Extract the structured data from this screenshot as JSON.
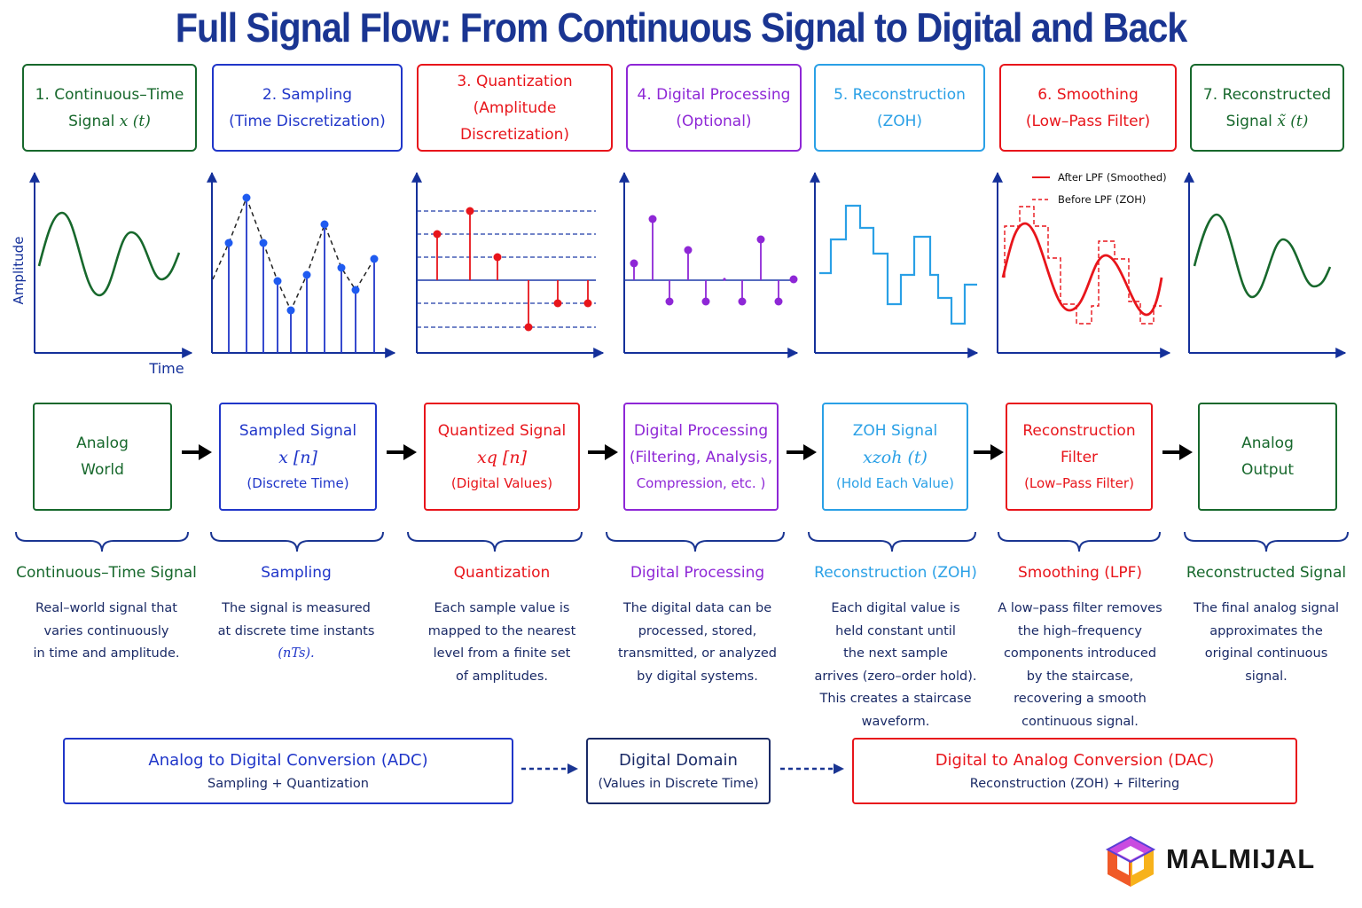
{
  "title": "Full Signal Flow: From Continuous Signal to Digital and Back",
  "stages": [
    {
      "line1": "1. Continuous–Time",
      "line2_text": "Signal ",
      "line2_math": "x (t)",
      "color": "#17682c"
    },
    {
      "line1": "2. Sampling",
      "line2_text": "(Time Discretization)",
      "line2_math": "",
      "color": "#2036c9"
    },
    {
      "line1": "3. Quantization",
      "line2_text": "(Amplitude Discretization)",
      "line2_math": "",
      "color": "#e8151b"
    },
    {
      "line1": "4. Digital Processing",
      "line2_text": "(Optional)",
      "line2_math": "",
      "color": "#8e27d6"
    },
    {
      "line1": "5. Reconstruction",
      "line2_text": "(ZOH)",
      "line2_math": "",
      "color": "#2aa0e6"
    },
    {
      "line1": "6. Smoothing",
      "line2_text": "(Low–Pass Filter)",
      "line2_math": "",
      "color": "#e8151b"
    },
    {
      "line1": "7. Reconstructed",
      "line2_text": "Signal ",
      "line2_math": "x̃ (t)",
      "color": "#17682c"
    }
  ],
  "axes": {
    "ylabel": "Amplitude",
    "xlabel": "Time"
  },
  "legend": {
    "after": "After LPF (Smoothed)",
    "before": "Before LPF (ZOH)"
  },
  "flow": [
    {
      "line1": "Analog",
      "line2": "World",
      "line3": "",
      "color": "#17682c"
    },
    {
      "line1": "Sampled Signal",
      "line2": "x [n]",
      "line3": "(Discrete Time)",
      "color": "#2036c9"
    },
    {
      "line1": "Quantized Signal",
      "line2": "xq [n]",
      "line3": "(Digital Values)",
      "color": "#e8151b"
    },
    {
      "line1": "Digital Processing",
      "line2": "(Filtering, Analysis,",
      "line3": "Compression, etc. )",
      "color": "#8e27d6"
    },
    {
      "line1": "ZOH Signal",
      "line2": "xzoh (t)",
      "line3": "(Hold Each Value)",
      "color": "#2aa0e6"
    },
    {
      "line1": "Reconstruction",
      "line2": "Filter",
      "line3": "(Low–Pass Filter)",
      "color": "#e8151b"
    },
    {
      "line1": "Analog",
      "line2": "Output",
      "line3": "",
      "color": "#17682c"
    }
  ],
  "descriptions": [
    {
      "title": "Continuous–Time Signal",
      "lines": [
        "Real–world signal that",
        "varies continuously",
        "in time and amplitude."
      ]
    },
    {
      "title": "Sampling",
      "lines": [
        "The signal is measured",
        "at discrete time instants",
        "(nTs)."
      ]
    },
    {
      "title": "Quantization",
      "lines": [
        "Each sample value is",
        "mapped to the nearest",
        "level from a finite set",
        "of amplitudes."
      ]
    },
    {
      "title": "Digital Processing",
      "lines": [
        "The digital data can be",
        "processed, stored,",
        "transmitted, or analyzed",
        "by digital systems."
      ]
    },
    {
      "title": "Reconstruction (ZOH)",
      "lines": [
        "Each digital value is",
        "held constant until",
        "the next sample",
        "arrives (zero–order hold).",
        "This creates a staircase",
        "waveform."
      ]
    },
    {
      "title": "Smoothing (LPF)",
      "lines": [
        "A low–pass filter removes",
        "the high–frequency",
        "components introduced",
        "by the staircase,",
        "recovering a smooth",
        "continuous signal."
      ]
    },
    {
      "title": "Reconstructed Signal",
      "lines": [
        "The final analog signal",
        "approximates the",
        "original continuous",
        "signal."
      ]
    }
  ],
  "bottom": [
    {
      "title": "Analog to Digital Conversion (ADC)",
      "subtitle": "Sampling + Quantization",
      "color": "#2036c9"
    },
    {
      "title": "Digital Domain",
      "subtitle": "(Values in Discrete Time)",
      "color": "#1a2a66"
    },
    {
      "title": "Digital to Analog Conversion (DAC)",
      "subtitle": "Reconstruction (ZOH) + Filtering",
      "color": "#e8151b"
    }
  ],
  "logo": {
    "text": "MALMIJAL"
  }
}
